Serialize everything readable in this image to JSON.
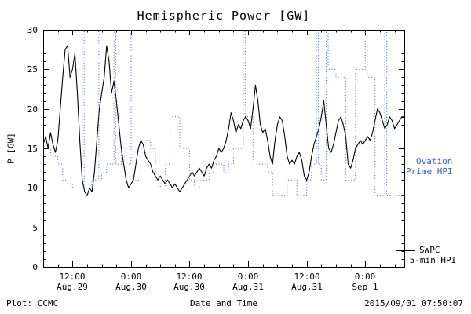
{
  "chart_data": {
    "type": "line",
    "title": "Hemispheric Power [GW]",
    "xlabel": "Date and Time",
    "ylabel": "P [GW]",
    "xlim": [
      0,
      74
    ],
    "ylim": [
      0,
      30
    ],
    "x_axis_note": "hours from Aug.29 06:00 (2015)",
    "grid": false,
    "yticks": [
      0,
      5,
      10,
      15,
      20,
      25,
      30
    ],
    "xticks": [
      {
        "t": 6,
        "time": "12:00",
        "date": "Aug.29"
      },
      {
        "t": 18,
        "time": "0:00",
        "date": "Aug.30"
      },
      {
        "t": 30,
        "time": "12:00",
        "date": "Aug.30"
      },
      {
        "t": 42,
        "time": "0:00",
        "date": "Aug.31"
      },
      {
        "t": 54,
        "time": "12:00",
        "date": "Aug.31"
      },
      {
        "t": 66,
        "time": "0:00",
        "date": "Sep 1"
      }
    ],
    "series": [
      {
        "name": "SWPC 5-min HPI",
        "color": "#000000",
        "style": "solid",
        "step": false,
        "t0": 0,
        "dt": 0.5,
        "values": [
          15.5,
          16.5,
          15,
          17,
          15.5,
          14.5,
          16,
          20,
          24,
          27.5,
          28,
          24,
          25,
          27,
          22,
          16,
          11,
          9.5,
          9,
          10,
          9.5,
          12,
          16,
          20,
          22,
          24,
          28,
          26,
          22,
          23.5,
          21,
          18,
          15,
          13,
          11,
          10,
          10.5,
          11,
          13,
          15,
          16,
          15.5,
          14,
          13.5,
          13,
          12,
          11.5,
          11,
          11.5,
          11,
          10.5,
          11,
          10.5,
          10,
          10.5,
          10,
          9.5,
          10,
          10.5,
          11,
          11.5,
          12,
          11.5,
          12,
          12.5,
          12,
          11.5,
          12.5,
          13,
          12.5,
          13.5,
          14,
          15,
          14.5,
          15,
          16,
          17.5,
          19.5,
          18.5,
          17,
          18,
          17.5,
          18.5,
          19,
          18.5,
          17.5,
          20,
          23,
          21,
          18,
          17,
          17.5,
          16,
          14,
          13,
          16,
          18,
          19,
          18.5,
          16.5,
          14,
          13,
          13.5,
          13,
          14,
          14.5,
          13.5,
          11.5,
          11,
          12,
          14,
          15.5,
          16.5,
          17.5,
          19,
          21,
          18,
          15,
          14.5,
          15.5,
          17,
          18.5,
          19,
          18,
          16.5,
          13,
          12.5,
          13.5,
          15,
          15.5,
          16,
          15.5,
          16,
          16.5,
          16,
          17,
          18.5,
          20,
          19.5,
          18.5,
          17.5,
          18,
          19,
          18.5,
          17.5,
          18,
          18.5,
          19,
          19
        ]
      },
      {
        "name": "Ovation Prime HPI",
        "color": "#3a5fcd",
        "style": "dotted",
        "step": true,
        "t": [
          0,
          1.5,
          3,
          4,
          5,
          6,
          8,
          8.4,
          10,
          11,
          11.4,
          12,
          13,
          14.5,
          14.9,
          16,
          17,
          18,
          18.4,
          20,
          22,
          23,
          24,
          25,
          26,
          28,
          30,
          31,
          32,
          34,
          35,
          37,
          38,
          39,
          41,
          41.4,
          42,
          43,
          46,
          47,
          50,
          52,
          54,
          55,
          56,
          56.4,
          57,
          58,
          58.4,
          60,
          62,
          64,
          66,
          66.4,
          68,
          70,
          70.4,
          74
        ],
        "v": [
          15,
          14,
          13,
          11,
          10.5,
          10,
          30,
          10,
          11,
          30,
          11,
          12,
          13,
          30,
          13,
          15,
          13,
          30,
          11,
          16,
          15,
          11,
          10,
          13,
          19,
          15,
          11,
          10,
          11,
          12,
          13,
          12,
          13,
          15,
          30,
          19,
          19,
          13,
          12,
          9,
          11,
          9,
          11,
          13,
          30,
          13,
          11,
          30,
          25,
          24,
          11,
          25,
          30,
          24,
          9,
          30,
          9,
          9
        ]
      }
    ]
  },
  "legend": {
    "ovation": {
      "line1": "Ovation",
      "line2": "Prime HPI",
      "color": "#3a5fcd"
    },
    "swpc": {
      "line1": "SWPC",
      "line2": "5-min HPI",
      "color": "#000000"
    }
  },
  "footer": {
    "left": "Plot: CCMC",
    "right": "2015/09/01 07:50:07"
  }
}
